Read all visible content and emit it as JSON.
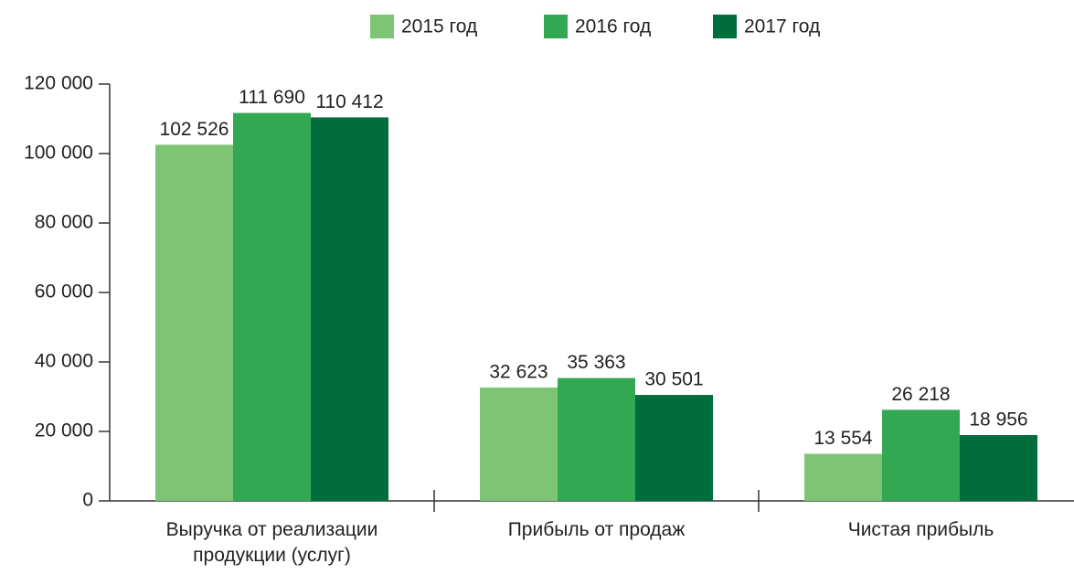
{
  "chart_data": {
    "type": "bar",
    "categories": [
      "Выручка от реализации\nпродукции (услуг)",
      "Прибыль от продаж",
      "Чистая прибыль"
    ],
    "series": [
      {
        "name": "2015 год",
        "color": "#7dc574",
        "values": [
          102526,
          32623,
          13554
        ],
        "value_labels": [
          "102 526",
          "32 623",
          "13 554"
        ]
      },
      {
        "name": "2016 год",
        "color": "#33a853",
        "values": [
          111690,
          35363,
          26218
        ],
        "value_labels": [
          "111 690",
          "35 363",
          "26 218"
        ]
      },
      {
        "name": "2017 год",
        "color": "#006d3d",
        "values": [
          110412,
          30501,
          18956
        ],
        "value_labels": [
          "110 412",
          "30 501",
          "18 956"
        ]
      }
    ],
    "ylim": [
      0,
      120000
    ],
    "yticks": [
      0,
      {
        "value": 20000,
        "label": "20 000"
      },
      {
        "value": 40000,
        "label": "40 000"
      },
      {
        "value": 60000,
        "label": "60 000"
      },
      {
        "value": 80000,
        "label": "80 000"
      },
      {
        "value": 100000,
        "label": "100 000"
      },
      {
        "value": 120000,
        "label": "120 000"
      }
    ],
    "legend": "top"
  }
}
